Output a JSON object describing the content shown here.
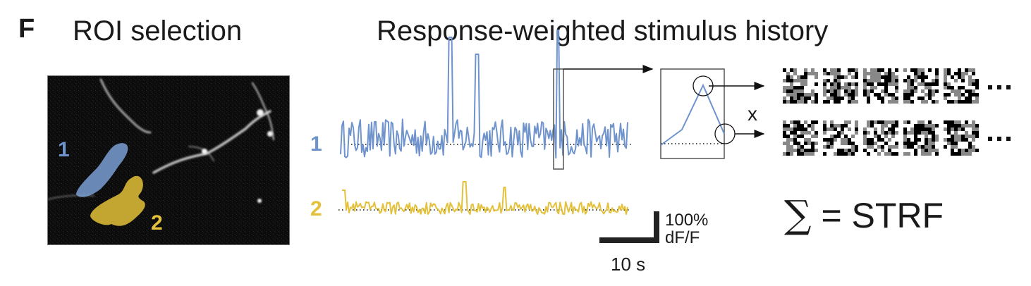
{
  "panel_letter": "F",
  "roi_panel": {
    "title": "ROI selection",
    "rois": [
      {
        "id": "1",
        "label": "1",
        "color": "#7b9fd4"
      },
      {
        "id": "2",
        "label": "2",
        "color": "#e3c23d"
      }
    ]
  },
  "rwsh_panel": {
    "title": "Response-weighted stimulus history",
    "trace_labels": [
      "1",
      "2"
    ],
    "multiply_symbol": "x",
    "ellipsis": "...",
    "result": {
      "sigma": "∑",
      "equals": "= STRF"
    },
    "scale_bar": {
      "y_label_line1": "100%",
      "y_label_line2": "dF/F",
      "x_label": "10 s"
    }
  },
  "colors": {
    "roi1": "#6f93cc",
    "roi2": "#e4c13a",
    "text": "#1a1a1a",
    "frame": "#555555"
  }
}
